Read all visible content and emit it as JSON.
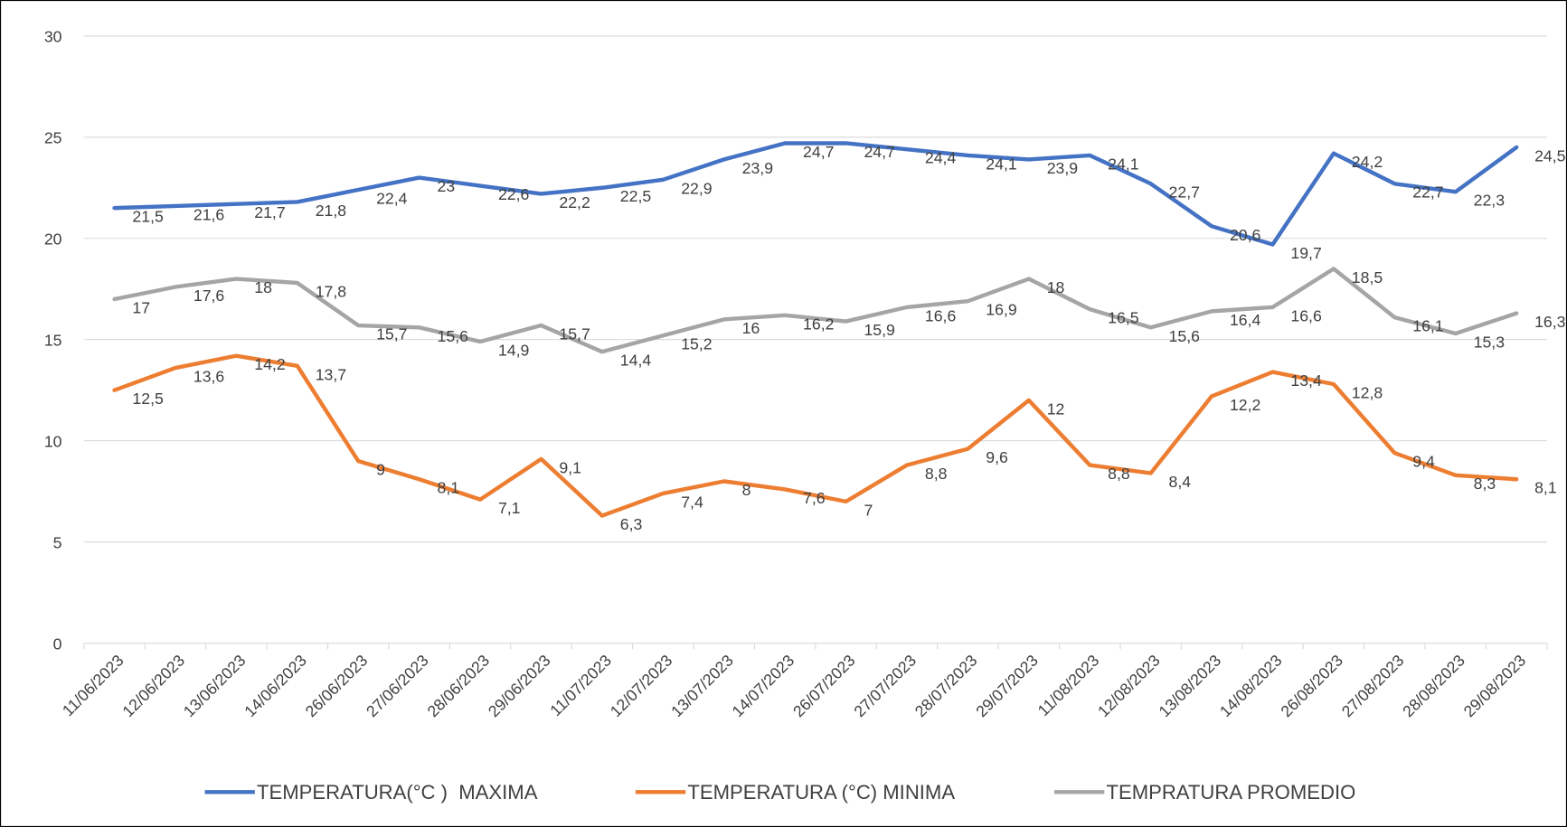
{
  "chart_data": {
    "type": "line",
    "categories": [
      "11/06/2023",
      "12/06/2023",
      "13/06/2023",
      "14/06/2023",
      "26/06/2023",
      "27/06/2023",
      "28/06/2023",
      "29/06/2023",
      "11/07/2023",
      "12/07/2023",
      "13/07/2023",
      "14/07/2023",
      "26/07/2023",
      "27/07/2023",
      "28/07/2023",
      "29/07/2023",
      "11/08/2023",
      "12/08/2023",
      "13/08/2023",
      "14/08/2023",
      "26/08/2023",
      "27/08/2023",
      "28/08/2023",
      "29/08/2023"
    ],
    "series": [
      {
        "name": "TEMPERATURA(°C )  MAXIMA",
        "color": "#4472c4",
        "values": [
          21.5,
          21.6,
          21.7,
          21.8,
          22.4,
          23,
          22.6,
          22.2,
          22.5,
          22.9,
          23.9,
          24.7,
          24.7,
          24.4,
          24.1,
          23.9,
          24.1,
          22.7,
          20.6,
          19.7,
          24.2,
          22.7,
          22.3,
          24.5
        ],
        "value_labels": [
          "21,5",
          "21,6",
          "21,7",
          "21,8",
          "22,4",
          "23",
          "22,6",
          "22,2",
          "22,5",
          "22,9",
          "23,9",
          "24,7",
          "24,7",
          "24,4",
          "24,1",
          "23,9",
          "24,1",
          "22,7",
          "20,6",
          "19,7",
          "24,2",
          "22,7",
          "22,3",
          "24,5"
        ]
      },
      {
        "name": "TEMPERATURA (°C) MINIMA",
        "color": "#ed7d31",
        "values": [
          12.5,
          13.6,
          14.2,
          13.7,
          9,
          8.1,
          7.1,
          9.1,
          6.3,
          7.4,
          8,
          7.6,
          7,
          8.8,
          9.6,
          12,
          8.8,
          8.4,
          12.2,
          13.4,
          12.8,
          9.4,
          8.3,
          8.1
        ],
        "value_labels": [
          "12,5",
          "13,6",
          "14,2",
          "13,7",
          "9",
          "8,1",
          "7,1",
          "9,1",
          "6,3",
          "7,4",
          "8",
          "7,6",
          "7",
          "8,8",
          "9,6",
          "12",
          "8,8",
          "8,4",
          "12,2",
          "13,4",
          "12,8",
          "9,4",
          "8,3",
          "8,1"
        ]
      },
      {
        "name": "TEMPRATURA PROMEDIO",
        "color": "#a5a5a5",
        "values": [
          17,
          17.6,
          18,
          17.8,
          15.7,
          15.6,
          14.9,
          15.7,
          14.4,
          15.2,
          16,
          16.2,
          15.9,
          16.6,
          16.9,
          18,
          16.5,
          15.6,
          16.4,
          16.6,
          18.5,
          16.1,
          15.3,
          16.3
        ],
        "value_labels": [
          "17",
          "17,6",
          "18",
          "17,8",
          "15,7",
          "15,6",
          "14,9",
          "15,7",
          "14,4",
          "15,2",
          "16",
          "16,2",
          "15,9",
          "16,6",
          "16,9",
          "18",
          "16,5",
          "15,6",
          "16,4",
          "16,6",
          "18,5",
          "16,1",
          "15,3",
          "16,3"
        ]
      }
    ],
    "ylim": [
      0,
      30
    ],
    "yticks": [
      0,
      5,
      10,
      15,
      20,
      25,
      30
    ],
    "grid": true,
    "legend": "bottom"
  }
}
